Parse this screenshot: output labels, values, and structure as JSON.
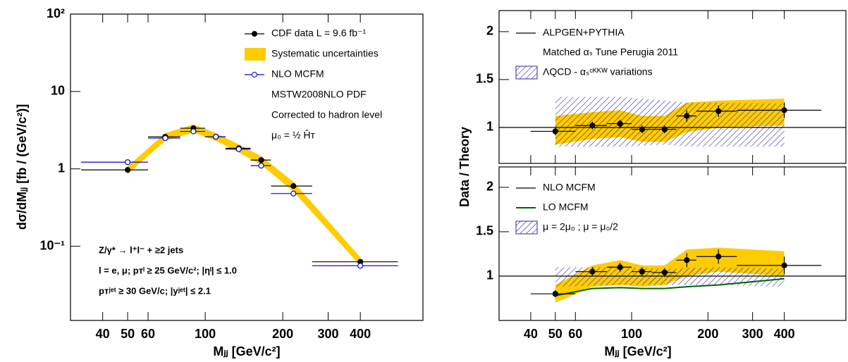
{
  "chart_data": [
    {
      "type": "errorbar",
      "log_x": true,
      "log_y": true,
      "xlim": [
        30,
        700
      ],
      "xticks": [
        40,
        50,
        60,
        100,
        200,
        300,
        400
      ],
      "ylim": [
        0.011,
        100
      ],
      "yticks": [
        {
          "value": 0.1,
          "label": "10⁻¹"
        },
        1,
        10,
        {
          "value": 100,
          "label": "10²"
        }
      ],
      "xlabel": "Mⱼⱼ [GeV/c²]",
      "ylabel": "dσ/dMⱼⱼ  [fb / (GeV/c²)]",
      "series": [
        {
          "name": "CDF data  L = 9.6 fb⁻¹",
          "type": "points",
          "marker": "filled",
          "color": "#000000",
          "x": [
            50,
            70,
            90,
            110,
            135,
            165,
            220,
            400
          ],
          "x_low": [
            33,
            60,
            80,
            100,
            120,
            150,
            180,
            260
          ],
          "x_high": [
            60,
            80,
            100,
            120,
            150,
            180,
            260,
            560
          ],
          "values": [
            0.97,
            2.6,
            3.35,
            2.6,
            1.85,
            1.3,
            0.6,
            0.063
          ]
        },
        {
          "name": "Systematic uncertainties",
          "type": "band",
          "color": "#ffcc00",
          "x": [
            50,
            70,
            90,
            110,
            135,
            165,
            220,
            400
          ],
          "low": [
            0.86,
            2.3,
            2.95,
            2.3,
            1.63,
            1.13,
            0.51,
            0.056
          ],
          "high": [
            1.08,
            2.9,
            3.75,
            2.9,
            2.07,
            1.46,
            0.68,
            0.072
          ]
        },
        {
          "name": "NLO MCFM",
          "type": "points",
          "marker": "open",
          "color": "#0000cc",
          "x": [
            50,
            70,
            90,
            110,
            135,
            165,
            220,
            400
          ],
          "x_low": [
            33,
            60,
            80,
            100,
            120,
            150,
            180,
            260
          ],
          "x_high": [
            60,
            80,
            100,
            120,
            150,
            180,
            260,
            560
          ],
          "values": [
            1.22,
            2.5,
            3.05,
            2.6,
            1.8,
            1.1,
            0.48,
            0.056
          ]
        }
      ],
      "notes": [
        "MSTW2008NLO PDF",
        "Corrected to hadron level",
        "μ₀ = ½ Ĥᴛ"
      ],
      "annotations": [
        "Z/γ* → l⁺l⁻ + ≥2 jets",
        "l = e, μ;  pᴛˡ ≥ 25 GeV/c²; |ηˡ| ≤ 1.0",
        "pᴛʲᵉᵗ ≥ 30 GeV/c; |yʲᵉᵗ| ≤ 2.1"
      ]
    },
    {
      "type": "errorbar",
      "log_x": true,
      "log_y": false,
      "xlim": [
        30,
        700
      ],
      "xticks": [
        40,
        50,
        60,
        100,
        200,
        300,
        400
      ],
      "ylim": [
        0.625,
        2.22
      ],
      "yticks": [
        1,
        1.5,
        2
      ],
      "series": [
        {
          "name": "ALPGEN+PYTHIA",
          "type": "hline",
          "color": "#000000",
          "values": [
            1
          ]
        },
        {
          "name": "ΛQCD - αₛᶜᴷᴷᵂ variations",
          "type": "hatch",
          "color": "#2a2aa8",
          "x": [
            50,
            90,
            135,
            165,
            400
          ],
          "low": [
            0.8,
            0.8,
            0.82,
            0.8,
            0.8
          ],
          "high": [
            1.32,
            1.32,
            1.28,
            1.26,
            1.25
          ]
        },
        {
          "type": "band",
          "color": "#ffcc00",
          "x": [
            50,
            70,
            90,
            110,
            135,
            165,
            220,
            400
          ],
          "low": [
            0.82,
            0.88,
            0.9,
            0.85,
            0.85,
            0.95,
            1.0,
            1.02
          ],
          "high": [
            1.12,
            1.16,
            1.18,
            1.12,
            1.12,
            1.26,
            1.28,
            1.3
          ]
        },
        {
          "type": "points",
          "marker": "filled",
          "color": "#000000",
          "x": [
            50,
            70,
            90,
            110,
            135,
            165,
            220,
            400
          ],
          "x_low": [
            40,
            60,
            80,
            100,
            120,
            150,
            180,
            260
          ],
          "x_high": [
            60,
            80,
            100,
            120,
            150,
            180,
            260,
            560
          ],
          "values": [
            0.96,
            1.02,
            1.04,
            0.98,
            0.98,
            1.12,
            1.17,
            1.18
          ],
          "errors": [
            0.04,
            0.04,
            0.04,
            0.04,
            0.04,
            0.06,
            0.06,
            0.08
          ]
        }
      ],
      "notes": [
        "Matched αₛ Tune Perugia 2011"
      ]
    },
    {
      "type": "errorbar",
      "log_x": true,
      "log_y": false,
      "xlim": [
        30,
        700
      ],
      "xticks": [
        40,
        50,
        60,
        100,
        200,
        300,
        400
      ],
      "ylim": [
        0.5,
        2.23
      ],
      "yticks": [
        1,
        1.5,
        2
      ],
      "xlabel": "Mⱼⱼ [GeV/c²]",
      "ylabel": "Data / Theory",
      "series": [
        {
          "name": "NLO MCFM",
          "type": "hline",
          "color": "#000000",
          "values": [
            1
          ]
        },
        {
          "name": "LO MCFM",
          "type": "line",
          "color": "#006400",
          "x": [
            50,
            70,
            90,
            110,
            135,
            165,
            220,
            400
          ],
          "values": [
            0.78,
            0.86,
            0.87,
            0.86,
            0.86,
            0.88,
            0.9,
            0.97
          ]
        },
        {
          "name": "μ = 2μ₀ ; μ = μ₀/2",
          "type": "hatch",
          "color": "#2a2aa8",
          "x": [
            50,
            90,
            135,
            220,
            400
          ],
          "low": [
            0.88,
            0.9,
            0.9,
            0.9,
            0.88
          ],
          "high": [
            1.1,
            1.1,
            1.08,
            1.1,
            1.08
          ]
        },
        {
          "type": "band",
          "color": "#ffcc00",
          "x": [
            50,
            70,
            90,
            110,
            135,
            165,
            220,
            400
          ],
          "low": [
            0.7,
            0.88,
            0.9,
            0.88,
            0.9,
            1.0,
            1.05,
            1.0
          ],
          "high": [
            0.9,
            1.12,
            1.18,
            1.12,
            1.12,
            1.3,
            1.32,
            1.28
          ]
        },
        {
          "type": "points",
          "marker": "filled",
          "color": "#000000",
          "x": [
            50,
            70,
            90,
            110,
            135,
            165,
            220,
            400
          ],
          "x_low": [
            40,
            60,
            80,
            100,
            120,
            150,
            180,
            260
          ],
          "x_high": [
            60,
            80,
            100,
            120,
            150,
            180,
            260,
            560
          ],
          "values": [
            0.8,
            1.05,
            1.1,
            1.05,
            1.04,
            1.18,
            1.22,
            1.12
          ],
          "errors": [
            0.04,
            0.05,
            0.05,
            0.05,
            0.05,
            0.08,
            0.08,
            0.1
          ]
        }
      ]
    }
  ]
}
